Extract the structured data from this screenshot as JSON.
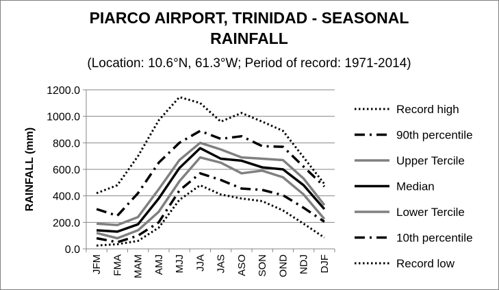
{
  "chart_data": {
    "type": "line",
    "title_line1": "PIARCO AIRPORT, TRINIDAD - SEASONAL",
    "title_line2": "RAINFALL",
    "subtitle": "(Location: 10.6°N, 61.3°W; Period of record: 1971-2014)",
    "xlabel": "",
    "ylabel": "RAINFALL (mm)",
    "ylim": [
      0,
      1200
    ],
    "ytick_values": [
      0,
      200,
      400,
      600,
      800,
      1000,
      1200
    ],
    "ytick_labels": [
      "0.0",
      "200.0",
      "400.0",
      "600.0",
      "800.0",
      "1000.0",
      "1200.0"
    ],
    "grid": true,
    "legend_position": "right",
    "categories": [
      "JFM",
      "FMA",
      "MAM",
      "AMJ",
      "MJJ",
      "JJA",
      "JAS",
      "ASO",
      "SON",
      "OND",
      "NDJ",
      "DJF"
    ],
    "series": [
      {
        "name": "Record high",
        "style": "dotted",
        "color": "#000000",
        "values": [
          420,
          480,
          700,
          970,
          1145,
          1100,
          960,
          1025,
          960,
          890,
          690,
          490
        ]
      },
      {
        "name": "90th percentile",
        "style": "dashdot",
        "color": "#000000",
        "values": [
          300,
          250,
          420,
          650,
          800,
          890,
          830,
          850,
          775,
          770,
          620,
          470
        ]
      },
      {
        "name": "Upper Tercile",
        "style": "solid-gray",
        "color": "#808080",
        "values": [
          190,
          180,
          240,
          450,
          670,
          800,
          750,
          690,
          680,
          670,
          530,
          330
        ]
      },
      {
        "name": "Median",
        "style": "solid",
        "color": "#000000",
        "values": [
          140,
          130,
          185,
          380,
          610,
          760,
          680,
          665,
          615,
          600,
          480,
          300
        ]
      },
      {
        "name": "Lower Tercile",
        "style": "solid-gray",
        "color": "#808080",
        "values": [
          120,
          80,
          140,
          280,
          510,
          690,
          650,
          570,
          590,
          540,
          410,
          225
        ]
      },
      {
        "name": "10th percentile",
        "style": "dashdot",
        "color": "#000000",
        "values": [
          80,
          50,
          100,
          200,
          440,
          570,
          520,
          455,
          445,
          405,
          310,
          205
        ]
      },
      {
        "name": "Record low",
        "style": "dotted",
        "color": "#000000",
        "values": [
          25,
          35,
          60,
          160,
          370,
          480,
          410,
          380,
          360,
          290,
          190,
          85
        ]
      }
    ]
  }
}
